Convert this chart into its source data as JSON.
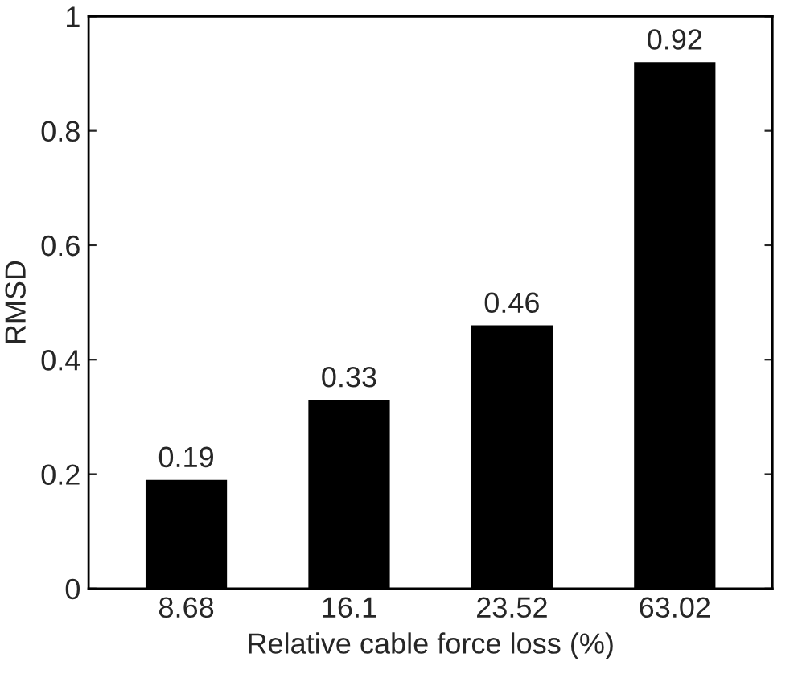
{
  "chart_data": {
    "type": "bar",
    "xlabel": "Relative cable force loss (%)",
    "ylabel": "RMSD",
    "categories": [
      "8.68",
      "16.1",
      "23.52",
      "63.02"
    ],
    "values": [
      0.19,
      0.33,
      0.46,
      0.92
    ],
    "color": "#000000",
    "ylim": [
      0,
      1
    ],
    "yticks": [
      0,
      0.2,
      0.4,
      0.6,
      0.8,
      1
    ],
    "data_labels": true,
    "grid": false
  }
}
